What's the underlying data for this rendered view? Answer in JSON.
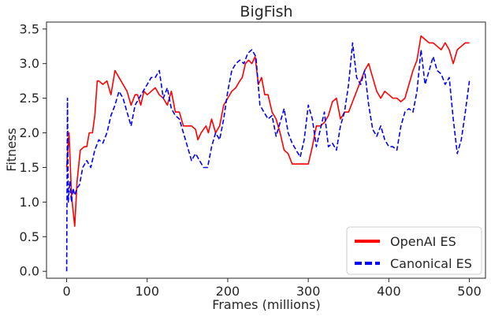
{
  "chart_data": {
    "type": "line",
    "title": "BigFish",
    "xlabel": "Frames (millions)",
    "ylabel": "Fitness",
    "xlim": [
      -25,
      520
    ],
    "ylim": [
      -0.1,
      3.6
    ],
    "xticks": [
      0,
      100,
      200,
      300,
      400,
      500
    ],
    "xtick_labels": [
      "0",
      "100",
      "200",
      "300",
      "400",
      "500"
    ],
    "yticks": [
      0.0,
      0.5,
      1.0,
      1.5,
      2.0,
      2.5,
      3.0,
      3.5
    ],
    "ytick_labels": [
      "0.0",
      "0.5",
      "1.0",
      "1.5",
      "2.0",
      "2.5",
      "3.0",
      "3.5"
    ],
    "grid": false,
    "legend_position": "bottom-right",
    "series": [
      {
        "name": "OpenAI ES",
        "color": "#ff0000",
        "style": "solid",
        "x": [
          0,
          3,
          6,
          10,
          13,
          17,
          22,
          25,
          28,
          32,
          35,
          38,
          40,
          45,
          50,
          55,
          60,
          65,
          70,
          75,
          80,
          85,
          88,
          92,
          96,
          100,
          105,
          110,
          115,
          120,
          125,
          130,
          135,
          140,
          145,
          150,
          155,
          160,
          163,
          167,
          170,
          173,
          176,
          180,
          185,
          190,
          195,
          200,
          205,
          210,
          215,
          218,
          222,
          226,
          230,
          234,
          238,
          242,
          246,
          250,
          255,
          260,
          265,
          270,
          275,
          280,
          285,
          290,
          295,
          300,
          305,
          310,
          315,
          320,
          325,
          330,
          335,
          340,
          345,
          350,
          355,
          360,
          365,
          370,
          375,
          380,
          385,
          390,
          395,
          400,
          405,
          410,
          415,
          420,
          425,
          430,
          435,
          440,
          445,
          450,
          455,
          460,
          465,
          470,
          475,
          480,
          485,
          490,
          495,
          500
        ],
        "values": [
          1.5,
          2.0,
          1.1,
          0.65,
          1.3,
          1.75,
          1.8,
          1.8,
          2.0,
          2.0,
          2.25,
          2.75,
          2.75,
          2.7,
          2.75,
          2.55,
          2.9,
          2.8,
          2.7,
          2.6,
          2.4,
          2.55,
          2.55,
          2.4,
          2.6,
          2.55,
          2.6,
          2.65,
          2.55,
          2.5,
          2.4,
          2.6,
          2.3,
          2.3,
          2.1,
          2.1,
          2.1,
          2.05,
          1.9,
          2.0,
          2.05,
          2.1,
          2.0,
          2.2,
          2.0,
          2.1,
          2.4,
          2.5,
          2.6,
          2.65,
          2.75,
          2.8,
          3.0,
          3.05,
          3.0,
          3.1,
          2.7,
          2.8,
          2.55,
          2.55,
          2.3,
          2.2,
          2.0,
          1.75,
          1.7,
          1.55,
          1.55,
          1.55,
          1.55,
          1.55,
          1.8,
          2.1,
          2.1,
          2.15,
          2.25,
          2.45,
          2.5,
          2.2,
          2.3,
          2.3,
          2.45,
          2.6,
          2.75,
          2.9,
          3.0,
          2.8,
          2.6,
          2.5,
          2.6,
          2.55,
          2.5,
          2.5,
          2.45,
          2.5,
          2.7,
          2.9,
          3.05,
          3.4,
          3.35,
          3.3,
          3.3,
          3.25,
          3.2,
          3.3,
          3.2,
          3.0,
          3.2,
          3.25,
          3.3,
          3.3
        ]
      },
      {
        "name": "Canonical ES",
        "color": "#0000ff",
        "style": "dashed",
        "x": [
          0,
          1,
          2,
          4,
          6,
          8,
          10,
          13,
          16,
          20,
          25,
          30,
          35,
          40,
          45,
          50,
          55,
          60,
          65,
          70,
          75,
          80,
          85,
          90,
          95,
          100,
          105,
          110,
          115,
          120,
          125,
          130,
          135,
          140,
          145,
          150,
          155,
          160,
          165,
          170,
          175,
          180,
          185,
          190,
          195,
          200,
          205,
          210,
          215,
          220,
          225,
          230,
          235,
          240,
          245,
          250,
          255,
          260,
          265,
          270,
          275,
          280,
          285,
          290,
          295,
          300,
          305,
          310,
          315,
          320,
          325,
          330,
          335,
          340,
          345,
          350,
          355,
          360,
          365,
          370,
          375,
          380,
          385,
          390,
          395,
          400,
          405,
          410,
          415,
          420,
          425,
          430,
          435,
          440,
          445,
          450,
          455,
          460,
          465,
          470,
          475,
          480,
          485,
          490,
          495,
          500
        ],
        "values": [
          0.0,
          2.5,
          1.0,
          1.3,
          1.0,
          1.2,
          1.1,
          1.2,
          1.25,
          1.5,
          1.6,
          1.5,
          1.75,
          1.9,
          1.85,
          2.0,
          2.25,
          2.4,
          2.6,
          2.5,
          2.3,
          2.1,
          2.4,
          2.5,
          2.6,
          2.7,
          2.8,
          2.8,
          2.9,
          2.5,
          2.65,
          2.35,
          2.25,
          2.2,
          2.0,
          1.8,
          1.6,
          1.7,
          1.6,
          1.5,
          1.5,
          1.8,
          2.0,
          1.9,
          2.2,
          2.6,
          2.9,
          3.0,
          3.05,
          3.0,
          3.15,
          3.2,
          3.1,
          2.4,
          2.3,
          2.2,
          2.25,
          1.95,
          2.15,
          2.35,
          2.0,
          1.85,
          1.75,
          1.65,
          1.9,
          2.4,
          2.2,
          1.8,
          2.05,
          2.3,
          1.8,
          1.85,
          1.75,
          2.1,
          2.3,
          2.7,
          3.3,
          2.8,
          2.7,
          2.9,
          2.4,
          2.05,
          1.95,
          2.1,
          1.9,
          1.8,
          1.8,
          1.75,
          2.1,
          2.3,
          2.35,
          2.3,
          2.6,
          3.2,
          2.7,
          2.9,
          3.1,
          2.9,
          2.85,
          2.7,
          2.8,
          2.2,
          1.7,
          1.9,
          2.3,
          2.75
        ]
      }
    ]
  }
}
